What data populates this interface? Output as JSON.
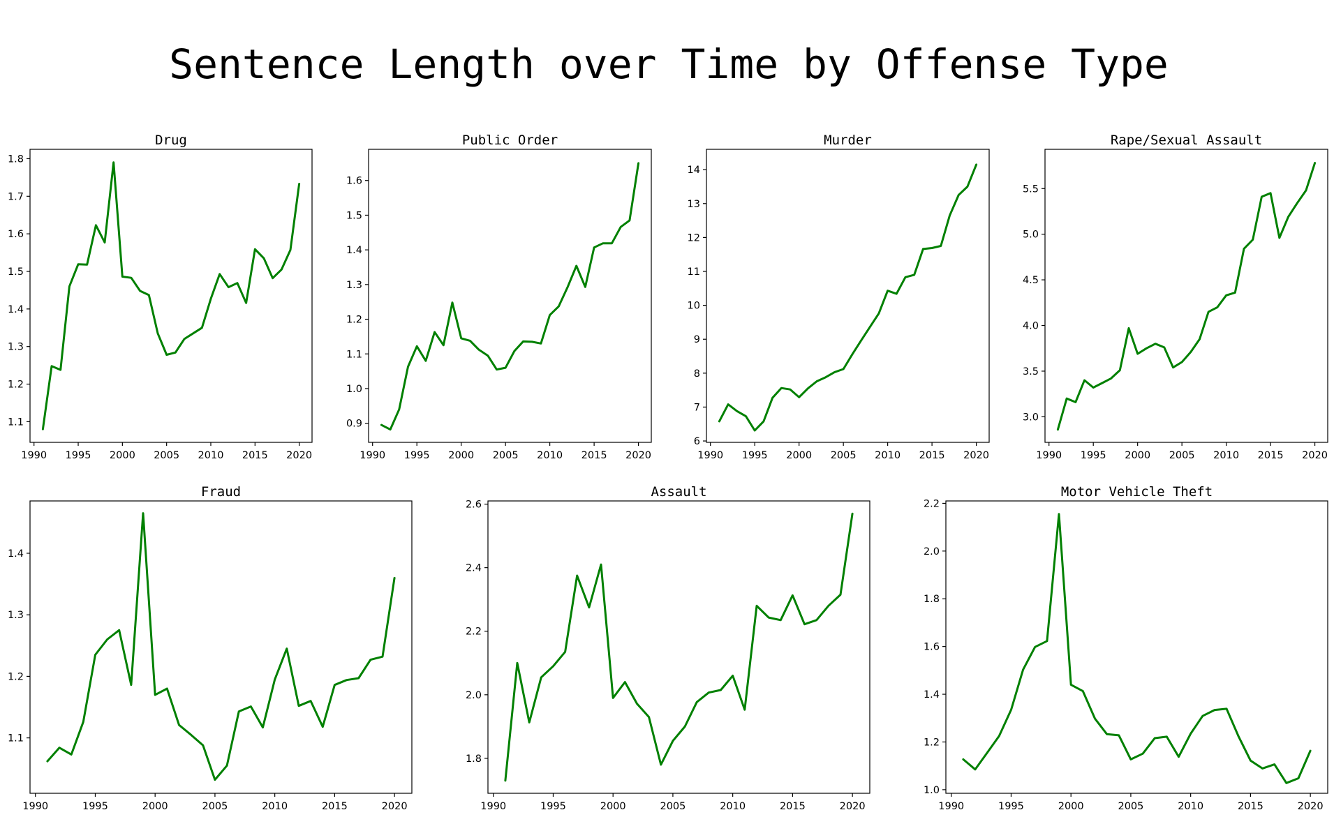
{
  "title": "Sentence Length over Time by Offense Type",
  "line_color": "#008000",
  "chart_data": [
    {
      "type": "line",
      "title": "Drug",
      "xlabel": "",
      "ylabel": "",
      "x": [
        1991,
        1992,
        1993,
        1994,
        1995,
        1996,
        1997,
        1998,
        1999,
        2000,
        2001,
        2002,
        2003,
        2004,
        2005,
        2006,
        2007,
        2008,
        2009,
        2010,
        2011,
        2012,
        2013,
        2014,
        2015,
        2016,
        2017,
        2018,
        2019,
        2020
      ],
      "y": [
        1.08,
        1.248,
        1.238,
        1.46,
        1.519,
        1.518,
        1.623,
        1.577,
        1.79,
        1.486,
        1.483,
        1.448,
        1.437,
        1.335,
        1.278,
        1.284,
        1.32,
        1.335,
        1.35,
        1.427,
        1.493,
        1.458,
        1.469,
        1.416,
        1.559,
        1.535,
        1.482,
        1.505,
        1.557,
        1.733
      ],
      "xlim": [
        1989.55,
        2021.45
      ],
      "ylim": [
        1.045,
        1.825
      ],
      "xticks": [
        1990,
        1995,
        2000,
        2005,
        2010,
        2015,
        2020
      ],
      "yticks": [
        1.1,
        1.2,
        1.3,
        1.4,
        1.5,
        1.6,
        1.7,
        1.8
      ],
      "ytick_labels": [
        "1.1",
        "1.2",
        "1.3",
        "1.4",
        "1.5",
        "1.6",
        "1.7",
        "1.8"
      ]
    },
    {
      "type": "line",
      "title": "Public Order",
      "xlabel": "",
      "ylabel": "",
      "x": [
        1991,
        1992,
        1993,
        1994,
        1995,
        1996,
        1997,
        1998,
        1999,
        2000,
        2001,
        2002,
        2003,
        2004,
        2005,
        2006,
        2007,
        2008,
        2009,
        2010,
        2011,
        2012,
        2013,
        2014,
        2015,
        2016,
        2017,
        2018,
        2019,
        2020
      ],
      "y": [
        0.895,
        0.882,
        0.94,
        1.063,
        1.122,
        1.08,
        1.163,
        1.125,
        1.248,
        1.145,
        1.138,
        1.112,
        1.095,
        1.055,
        1.06,
        1.108,
        1.136,
        1.135,
        1.13,
        1.212,
        1.237,
        1.292,
        1.354,
        1.293,
        1.407,
        1.419,
        1.419,
        1.466,
        1.485,
        1.65
      ],
      "xlim": [
        1989.55,
        2021.45
      ],
      "ylim": [
        0.845,
        1.69
      ],
      "xticks": [
        1990,
        1995,
        2000,
        2005,
        2010,
        2015,
        2020
      ],
      "yticks": [
        0.9,
        1.0,
        1.1,
        1.2,
        1.3,
        1.4,
        1.5,
        1.6
      ],
      "ytick_labels": [
        "0.9",
        "1.0",
        "1.1",
        "1.2",
        "1.3",
        "1.4",
        "1.5",
        "1.6"
      ]
    },
    {
      "type": "line",
      "title": "Murder",
      "xlabel": "",
      "ylabel": "",
      "x": [
        1991,
        1992,
        1993,
        1994,
        1995,
        1996,
        1997,
        1998,
        1999,
        2000,
        2001,
        2002,
        2003,
        2004,
        2005,
        2006,
        2007,
        2008,
        2009,
        2010,
        2011,
        2012,
        2013,
        2014,
        2015,
        2016,
        2017,
        2018,
        2019,
        2020
      ],
      "y": [
        6.58,
        7.08,
        6.88,
        6.73,
        6.31,
        6.58,
        7.27,
        7.56,
        7.52,
        7.29,
        7.55,
        7.76,
        7.88,
        8.03,
        8.12,
        8.55,
        8.96,
        9.36,
        9.76,
        10.43,
        10.34,
        10.83,
        10.9,
        11.66,
        11.69,
        11.75,
        12.65,
        13.25,
        13.5,
        14.15
      ],
      "xlim": [
        1989.55,
        2021.45
      ],
      "ylim": [
        5.96,
        14.6
      ],
      "xticks": [
        1990,
        1995,
        2000,
        2005,
        2010,
        2015,
        2020
      ],
      "yticks": [
        6,
        7,
        8,
        9,
        10,
        11,
        12,
        13,
        14
      ],
      "ytick_labels": [
        "6",
        "7",
        "8",
        "9",
        "10",
        "11",
        "12",
        "13",
        "14"
      ]
    },
    {
      "type": "line",
      "title": "Rape/Sexual Assault",
      "xlabel": "",
      "ylabel": "",
      "x": [
        1991,
        1992,
        1993,
        1994,
        1995,
        1996,
        1997,
        1998,
        1999,
        2000,
        2001,
        2002,
        2003,
        2004,
        2005,
        2006,
        2007,
        2008,
        2009,
        2010,
        2011,
        2012,
        2013,
        2014,
        2015,
        2016,
        2017,
        2018,
        2019,
        2020
      ],
      "y": [
        2.86,
        3.2,
        3.16,
        3.4,
        3.32,
        3.37,
        3.42,
        3.51,
        3.97,
        3.69,
        3.75,
        3.8,
        3.76,
        3.54,
        3.6,
        3.71,
        3.85,
        4.15,
        4.2,
        4.33,
        4.36,
        4.84,
        4.94,
        5.41,
        5.45,
        4.96,
        5.19,
        5.34,
        5.48,
        5.78
      ],
      "xlim": [
        1989.55,
        2021.45
      ],
      "ylim": [
        2.72,
        5.93
      ],
      "xticks": [
        1990,
        1995,
        2000,
        2005,
        2010,
        2015,
        2020
      ],
      "yticks": [
        3.0,
        3.5,
        4.0,
        4.5,
        5.0,
        5.5
      ],
      "ytick_labels": [
        "3.0",
        "3.5",
        "4.0",
        "4.5",
        "5.0",
        "5.5"
      ]
    },
    {
      "type": "line",
      "title": "Fraud",
      "xlabel": "",
      "ylabel": "",
      "x": [
        1991,
        1992,
        1993,
        1994,
        1995,
        1996,
        1997,
        1998,
        1999,
        2000,
        2001,
        2002,
        2003,
        2004,
        2005,
        2006,
        2007,
        2008,
        2009,
        2010,
        2011,
        2012,
        2013,
        2014,
        2015,
        2016,
        2017,
        2018,
        2019,
        2020
      ],
      "y": [
        1.062,
        1.084,
        1.073,
        1.126,
        1.235,
        1.26,
        1.275,
        1.186,
        1.465,
        1.17,
        1.18,
        1.121,
        1.105,
        1.088,
        1.032,
        1.055,
        1.143,
        1.151,
        1.117,
        1.195,
        1.245,
        1.152,
        1.16,
        1.118,
        1.186,
        1.194,
        1.197,
        1.227,
        1.232,
        1.36
      ],
      "xlim": [
        1989.55,
        2021.45
      ],
      "ylim": [
        1.01,
        1.485
      ],
      "xticks": [
        1990,
        1995,
        2000,
        2005,
        2010,
        2015,
        2020
      ],
      "yticks": [
        1.1,
        1.2,
        1.3,
        1.4
      ],
      "ytick_labels": [
        "1.1",
        "1.2",
        "1.3",
        "1.4"
      ]
    },
    {
      "type": "line",
      "title": "Assault",
      "xlabel": "",
      "ylabel": "",
      "x": [
        1991,
        1992,
        1993,
        1994,
        1995,
        1996,
        1997,
        1998,
        1999,
        2000,
        2001,
        2002,
        2003,
        2004,
        2005,
        2006,
        2007,
        2008,
        2009,
        2010,
        2011,
        2012,
        2013,
        2014,
        2015,
        2016,
        2017,
        2018,
        2019,
        2020
      ],
      "y": [
        1.73,
        2.1,
        1.913,
        2.055,
        2.09,
        2.135,
        2.375,
        2.275,
        2.41,
        1.99,
        2.04,
        1.972,
        1.93,
        1.78,
        1.855,
        1.9,
        1.977,
        2.007,
        2.015,
        2.06,
        1.953,
        2.28,
        2.243,
        2.235,
        2.313,
        2.222,
        2.235,
        2.28,
        2.315,
        2.57
      ],
      "xlim": [
        1989.55,
        2021.45
      ],
      "ylim": [
        1.69,
        2.61
      ],
      "xticks": [
        1990,
        1995,
        2000,
        2005,
        2010,
        2015,
        2020
      ],
      "yticks": [
        1.8,
        2.0,
        2.2,
        2.4,
        2.6
      ],
      "ytick_labels": [
        "1.8",
        "2.0",
        "2.2",
        "2.4",
        "2.6"
      ]
    },
    {
      "type": "line",
      "title": "Motor Vehicle Theft",
      "xlabel": "",
      "ylabel": "",
      "x": [
        1991,
        1992,
        1993,
        1994,
        1995,
        1996,
        1997,
        1998,
        1999,
        2000,
        2001,
        2002,
        2003,
        2004,
        2005,
        2006,
        2007,
        2008,
        2009,
        2010,
        2011,
        2012,
        2013,
        2014,
        2015,
        2016,
        2017,
        2018,
        2019,
        2020
      ],
      "y": [
        1.127,
        1.085,
        1.155,
        1.225,
        1.335,
        1.503,
        1.598,
        1.623,
        2.155,
        1.44,
        1.413,
        1.298,
        1.233,
        1.228,
        1.127,
        1.151,
        1.216,
        1.222,
        1.138,
        1.235,
        1.309,
        1.334,
        1.339,
        1.223,
        1.122,
        1.089,
        1.106,
        1.028,
        1.048,
        1.163
      ],
      "xlim": [
        1989.55,
        2021.45
      ],
      "ylim": [
        0.985,
        2.21
      ],
      "xticks": [
        1990,
        1995,
        2000,
        2005,
        2010,
        2015,
        2020
      ],
      "yticks": [
        1.0,
        1.2,
        1.4,
        1.6,
        1.8,
        2.0,
        2.2
      ],
      "ytick_labels": [
        "1.0",
        "1.2",
        "1.4",
        "1.6",
        "1.8",
        "2.0",
        "2.2"
      ]
    }
  ]
}
